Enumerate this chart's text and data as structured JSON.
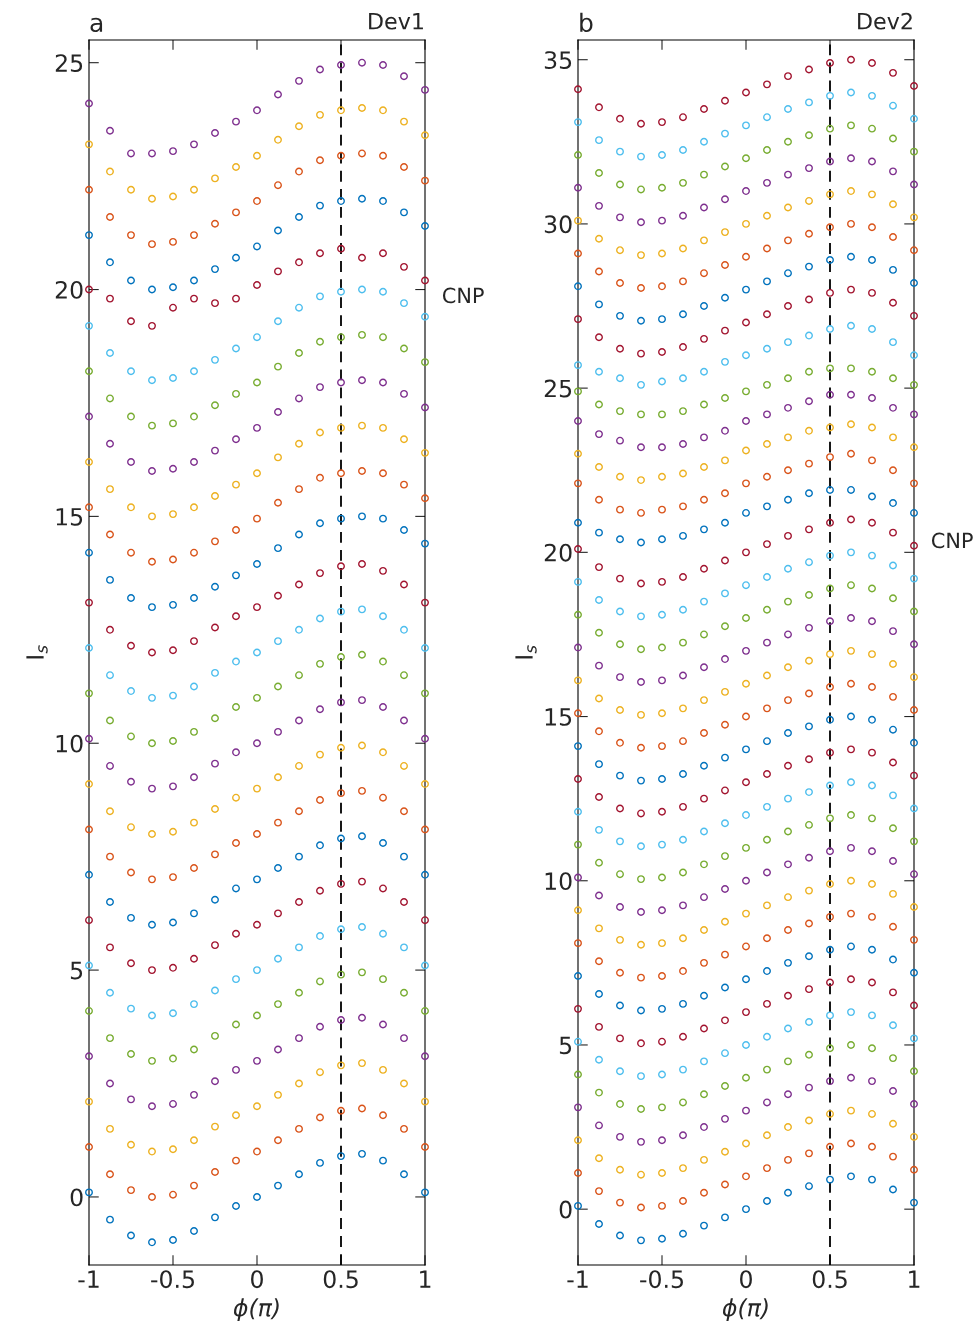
{
  "chart_data": [
    {
      "type": "scatter",
      "title": "a",
      "xlabel": "ϕ(π)",
      "ylabel": "I$_{s}$",
      "marker": "circle",
      "grid": false,
      "xlim": [
        -1,
        1
      ],
      "xticks": [
        -1,
        -0.5,
        0,
        0.5,
        1
      ],
      "ylim": [
        -1.5,
        25.5
      ],
      "yticks": [
        0,
        5,
        10,
        15,
        20,
        25
      ],
      "ref_lines": [
        {
          "axis": "x",
          "value": 0.5,
          "color": "#000000",
          "line_style": "dashed"
        }
      ],
      "annotations": [
        "Dev1",
        "CNP"
      ],
      "x": [
        -1,
        -0.875,
        -0.75,
        -0.625,
        -0.5,
        -0.375,
        -0.25,
        -0.125,
        0,
        0.125,
        0.25,
        0.375,
        0.5,
        0.625,
        0.75,
        0.875,
        1
      ],
      "series": [
        {
          "color": "#0072bd",
          "values": [
            0.1,
            -0.5,
            -0.85,
            -1,
            -0.95,
            -0.75,
            -0.45,
            -0.2,
            0,
            0.25,
            0.5,
            0.75,
            0.9,
            0.95,
            0.8,
            0.5,
            0.1
          ]
        },
        {
          "color": "#d95319",
          "values": [
            1.1,
            0.5,
            0.15,
            0,
            0.05,
            0.25,
            0.55,
            0.8,
            1,
            1.25,
            1.5,
            1.75,
            1.9,
            1.95,
            1.8,
            1.5,
            1.1
          ]
        },
        {
          "color": "#edb120",
          "values": [
            2.1,
            1.5,
            1.15,
            1,
            1.05,
            1.25,
            1.55,
            1.8,
            2,
            2.25,
            2.5,
            2.75,
            2.9,
            2.95,
            2.8,
            2.5,
            2.1
          ]
        },
        {
          "color": "#7e2f8e",
          "values": [
            3.1,
            2.5,
            2.15,
            2,
            2.05,
            2.25,
            2.55,
            2.8,
            3,
            3.25,
            3.5,
            3.75,
            3.9,
            3.95,
            3.8,
            3.5,
            3.1
          ]
        },
        {
          "color": "#77ac30",
          "values": [
            4.1,
            3.5,
            3.15,
            3,
            3.05,
            3.25,
            3.55,
            3.8,
            4,
            4.25,
            4.5,
            4.75,
            4.9,
            4.95,
            4.8,
            4.5,
            4.1
          ]
        },
        {
          "color": "#4dbeee",
          "values": [
            5.1,
            4.5,
            4.15,
            4,
            4.05,
            4.25,
            4.55,
            4.8,
            5,
            5.25,
            5.5,
            5.75,
            5.9,
            5.95,
            5.8,
            5.5,
            5.1
          ]
        },
        {
          "color": "#a2142f",
          "values": [
            6.1,
            5.5,
            5.15,
            5,
            5.05,
            5.25,
            5.55,
            5.8,
            6,
            6.25,
            6.5,
            6.75,
            6.9,
            6.95,
            6.8,
            6.5,
            6.1
          ]
        },
        {
          "color": "#0072bd",
          "values": [
            7.1,
            6.5,
            6.15,
            6,
            6.05,
            6.25,
            6.55,
            6.8,
            7,
            7.25,
            7.5,
            7.75,
            7.9,
            7.95,
            7.8,
            7.5,
            7.1
          ]
        },
        {
          "color": "#d95319",
          "values": [
            8.1,
            7.5,
            7.15,
            7,
            7.05,
            7.25,
            7.55,
            7.8,
            8,
            8.25,
            8.5,
            8.75,
            8.9,
            8.95,
            8.8,
            8.5,
            8.1
          ]
        },
        {
          "color": "#edb120",
          "values": [
            9.1,
            8.5,
            8.15,
            8,
            8.05,
            8.25,
            8.55,
            8.8,
            9,
            9.25,
            9.5,
            9.75,
            9.9,
            9.95,
            9.8,
            9.5,
            9.1
          ]
        },
        {
          "color": "#7e2f8e",
          "values": [
            10.1,
            9.5,
            9.15,
            9,
            9.05,
            9.25,
            9.55,
            9.8,
            10,
            10.25,
            10.5,
            10.75,
            10.9,
            10.95,
            10.8,
            10.5,
            10.1
          ]
        },
        {
          "color": "#77ac30",
          "values": [
            11.1,
            10.5,
            10.15,
            10,
            10.05,
            10.25,
            10.55,
            10.8,
            11,
            11.25,
            11.5,
            11.75,
            11.9,
            11.95,
            11.8,
            11.5,
            11.1
          ]
        },
        {
          "color": "#4dbeee",
          "values": [
            12.1,
            11.5,
            11.15,
            11,
            11.05,
            11.25,
            11.55,
            11.8,
            12,
            12.25,
            12.5,
            12.75,
            12.9,
            12.95,
            12.8,
            12.5,
            12.1
          ]
        },
        {
          "color": "#a2142f",
          "values": [
            13.1,
            12.5,
            12.15,
            12,
            12.05,
            12.25,
            12.55,
            12.8,
            13,
            13.25,
            13.5,
            13.75,
            13.9,
            13.95,
            13.8,
            13.5,
            13.1
          ]
        },
        {
          "color": "#0072bd",
          "values": [
            14.2,
            13.6,
            13.2,
            13,
            13.05,
            13.2,
            13.45,
            13.7,
            13.95,
            14.3,
            14.6,
            14.85,
            14.95,
            15,
            14.95,
            14.7,
            14.4
          ]
        },
        {
          "color": "#d95319",
          "values": [
            15.2,
            14.6,
            14.2,
            14,
            14.05,
            14.2,
            14.45,
            14.7,
            14.95,
            15.3,
            15.6,
            15.85,
            15.95,
            16,
            15.95,
            15.7,
            15.4
          ]
        },
        {
          "color": "#edb120",
          "values": [
            16.2,
            15.6,
            15.2,
            15,
            15.05,
            15.2,
            15.45,
            15.7,
            15.95,
            16.3,
            16.6,
            16.85,
            16.95,
            17,
            16.95,
            16.7,
            16.4
          ]
        },
        {
          "color": "#7e2f8e",
          "values": [
            17.2,
            16.6,
            16.2,
            16,
            16.05,
            16.2,
            16.45,
            16.7,
            16.95,
            17.3,
            17.6,
            17.85,
            17.95,
            18,
            17.95,
            17.7,
            17.4
          ]
        },
        {
          "color": "#77ac30",
          "values": [
            18.2,
            17.6,
            17.2,
            17,
            17.05,
            17.2,
            17.45,
            17.7,
            17.95,
            18.3,
            18.6,
            18.85,
            18.95,
            19,
            18.95,
            18.7,
            18.4
          ]
        },
        {
          "color": "#4dbeee",
          "values": [
            19.2,
            18.6,
            18.2,
            18,
            18.05,
            18.2,
            18.45,
            18.7,
            18.95,
            19.3,
            19.6,
            19.85,
            19.95,
            20,
            19.95,
            19.7,
            19.4
          ]
        },
        {
          "color": "#a2142f",
          "values": [
            20.0,
            19.8,
            19.3,
            19.2,
            19.6,
            19.8,
            19.7,
            19.8,
            20.1,
            20.4,
            20.6,
            20.8,
            20.9,
            20.7,
            20.8,
            20.5,
            20.2
          ]
        },
        {
          "color": "#0072bd",
          "values": [
            21.2,
            20.6,
            20.2,
            20,
            20.05,
            20.2,
            20.45,
            20.7,
            20.95,
            21.3,
            21.6,
            21.85,
            21.95,
            22,
            21.95,
            21.7,
            21.4
          ]
        },
        {
          "color": "#d95319",
          "values": [
            22.2,
            21.6,
            21.2,
            21,
            21.05,
            21.2,
            21.45,
            21.7,
            21.95,
            22.3,
            22.6,
            22.85,
            22.95,
            23,
            22.95,
            22.7,
            22.4
          ]
        },
        {
          "color": "#edb120",
          "values": [
            23.2,
            22.6,
            22.2,
            22,
            22.05,
            22.2,
            22.45,
            22.7,
            22.95,
            23.3,
            23.6,
            23.85,
            23.95,
            24,
            23.95,
            23.7,
            23.4
          ]
        },
        {
          "color": "#7e2f8e",
          "values": [
            24.1,
            23.5,
            23,
            23,
            23.05,
            23.2,
            23.45,
            23.7,
            23.95,
            24.3,
            24.6,
            24.85,
            24.95,
            25,
            24.95,
            24.7,
            24.4
          ]
        }
      ]
    },
    {
      "type": "scatter",
      "title": "b",
      "xlabel": "ϕ(π)",
      "ylabel": "I$_{s}$",
      "marker": "circle",
      "grid": false,
      "xlim": [
        -1,
        1
      ],
      "xticks": [
        -1,
        -0.5,
        0,
        0.5,
        1
      ],
      "ylim": [
        -1.7,
        35.6
      ],
      "yticks": [
        0,
        5,
        10,
        15,
        20,
        25,
        30,
        35
      ],
      "ref_lines": [
        {
          "axis": "x",
          "value": 0.5,
          "color": "#000000",
          "line_style": "dashed"
        }
      ],
      "annotations": [
        "Dev2",
        "CNP"
      ],
      "x": [
        -1,
        -0.875,
        -0.75,
        -0.625,
        -0.5,
        -0.375,
        -0.25,
        -0.125,
        0,
        0.125,
        0.25,
        0.375,
        0.5,
        0.625,
        0.75,
        0.875,
        1
      ],
      "series": [
        {
          "color": "#0072bd",
          "values": [
            0.1,
            -0.45,
            -0.8,
            -0.95,
            -0.9,
            -0.75,
            -0.5,
            -0.25,
            0,
            0.25,
            0.5,
            0.7,
            0.9,
            1,
            0.9,
            0.6,
            0.2
          ]
        },
        {
          "color": "#d95319",
          "values": [
            1.1,
            0.55,
            0.2,
            0.05,
            0.1,
            0.25,
            0.5,
            0.75,
            1,
            1.25,
            1.5,
            1.7,
            1.9,
            2,
            1.9,
            1.6,
            1.2
          ]
        },
        {
          "color": "#edb120",
          "values": [
            2.1,
            1.55,
            1.2,
            1.05,
            1.1,
            1.25,
            1.5,
            1.75,
            2,
            2.25,
            2.5,
            2.7,
            2.9,
            3,
            2.9,
            2.6,
            2.2
          ]
        },
        {
          "color": "#7e2f8e",
          "values": [
            3.1,
            2.55,
            2.2,
            2.05,
            2.1,
            2.25,
            2.5,
            2.75,
            3,
            3.25,
            3.5,
            3.7,
            3.9,
            4,
            3.9,
            3.6,
            3.2
          ]
        },
        {
          "color": "#77ac30",
          "values": [
            4.1,
            3.55,
            3.2,
            3.05,
            3.1,
            3.25,
            3.5,
            3.75,
            4,
            4.25,
            4.5,
            4.7,
            4.9,
            5,
            4.9,
            4.6,
            4.2
          ]
        },
        {
          "color": "#4dbeee",
          "values": [
            5.1,
            4.55,
            4.2,
            4.05,
            4.1,
            4.25,
            4.5,
            4.75,
            5,
            5.25,
            5.5,
            5.7,
            5.9,
            6,
            5.9,
            5.6,
            5.2
          ]
        },
        {
          "color": "#a2142f",
          "values": [
            6.1,
            5.55,
            5.2,
            5.05,
            5.1,
            5.25,
            5.5,
            5.75,
            6,
            6.25,
            6.5,
            6.7,
            6.9,
            7,
            6.9,
            6.6,
            6.2
          ]
        },
        {
          "color": "#0072bd",
          "values": [
            7.1,
            6.55,
            6.2,
            6.05,
            6.1,
            6.25,
            6.5,
            6.75,
            7,
            7.25,
            7.5,
            7.7,
            7.9,
            8,
            7.9,
            7.6,
            7.2
          ]
        },
        {
          "color": "#d95319",
          "values": [
            8.1,
            7.55,
            7.2,
            7.05,
            7.1,
            7.25,
            7.5,
            7.75,
            8,
            8.25,
            8.5,
            8.7,
            8.9,
            9,
            8.9,
            8.6,
            8.2
          ]
        },
        {
          "color": "#edb120",
          "values": [
            9.1,
            8.55,
            8.2,
            8.05,
            8.1,
            8.25,
            8.5,
            8.75,
            9,
            9.25,
            9.5,
            9.7,
            9.9,
            10,
            9.9,
            9.6,
            9.2
          ]
        },
        {
          "color": "#7e2f8e",
          "values": [
            10.1,
            9.55,
            9.2,
            9.05,
            9.1,
            9.25,
            9.5,
            9.75,
            10,
            10.25,
            10.5,
            10.7,
            10.9,
            11,
            10.9,
            10.6,
            10.2
          ]
        },
        {
          "color": "#77ac30",
          "values": [
            11.1,
            10.55,
            10.2,
            10.05,
            10.1,
            10.25,
            10.5,
            10.75,
            11,
            11.25,
            11.5,
            11.7,
            11.9,
            12,
            11.9,
            11.6,
            11.2
          ]
        },
        {
          "color": "#4dbeee",
          "values": [
            12.1,
            11.55,
            11.2,
            11.05,
            11.1,
            11.25,
            11.5,
            11.75,
            12,
            12.25,
            12.5,
            12.7,
            12.9,
            13,
            12.9,
            12.6,
            12.2
          ]
        },
        {
          "color": "#a2142f",
          "values": [
            13.1,
            12.55,
            12.2,
            12.05,
            12.1,
            12.25,
            12.5,
            12.75,
            13,
            13.25,
            13.5,
            13.7,
            13.9,
            14,
            13.9,
            13.6,
            13.2
          ]
        },
        {
          "color": "#0072bd",
          "values": [
            14.1,
            13.55,
            13.2,
            13.05,
            13.1,
            13.25,
            13.5,
            13.75,
            14,
            14.25,
            14.5,
            14.7,
            14.9,
            15,
            14.9,
            14.6,
            14.2
          ]
        },
        {
          "color": "#d95319",
          "values": [
            15.1,
            14.55,
            14.2,
            14.05,
            14.1,
            14.25,
            14.5,
            14.75,
            15,
            15.25,
            15.5,
            15.7,
            15.9,
            16,
            15.9,
            15.6,
            15.2
          ]
        },
        {
          "color": "#edb120",
          "values": [
            16.1,
            15.55,
            15.2,
            15.05,
            15.1,
            15.25,
            15.5,
            15.75,
            16,
            16.25,
            16.5,
            16.7,
            16.9,
            17,
            16.9,
            16.6,
            16.2
          ]
        },
        {
          "color": "#7e2f8e",
          "values": [
            17.1,
            16.55,
            16.2,
            16.05,
            16.1,
            16.25,
            16.5,
            16.75,
            17,
            17.25,
            17.5,
            17.7,
            17.9,
            18,
            17.9,
            17.6,
            17.2
          ]
        },
        {
          "color": "#77ac30",
          "values": [
            18.1,
            17.55,
            17.2,
            17.05,
            17.1,
            17.25,
            17.5,
            17.75,
            18,
            18.25,
            18.5,
            18.7,
            18.9,
            19,
            18.9,
            18.6,
            18.2
          ]
        },
        {
          "color": "#4dbeee",
          "values": [
            19.1,
            18.55,
            18.2,
            18.05,
            18.1,
            18.25,
            18.5,
            18.75,
            19,
            19.25,
            19.5,
            19.7,
            19.9,
            20,
            19.9,
            19.6,
            19.2
          ]
        },
        {
          "color": "#a2142f",
          "values": [
            20.1,
            19.55,
            19.2,
            19.05,
            19.1,
            19.25,
            19.5,
            19.75,
            20,
            20.25,
            20.5,
            20.7,
            20.9,
            21,
            20.9,
            20.6,
            20.2
          ]
        },
        {
          "color": "#0072bd",
          "values": [
            20.9,
            20.6,
            20.4,
            20.3,
            20.4,
            20.5,
            20.7,
            20.9,
            21.2,
            21.4,
            21.6,
            21.8,
            21.9,
            21.9,
            21.7,
            21.5,
            21.2
          ]
        },
        {
          "color": "#d95319",
          "values": [
            22.1,
            21.6,
            21.3,
            21.2,
            21.3,
            21.4,
            21.6,
            21.8,
            22.1,
            22.3,
            22.5,
            22.7,
            22.9,
            23,
            22.8,
            22.5,
            22.1
          ]
        },
        {
          "color": "#edb120",
          "values": [
            23,
            22.6,
            22.3,
            22.2,
            22.3,
            22.4,
            22.6,
            22.8,
            23.1,
            23.3,
            23.5,
            23.7,
            23.8,
            23.9,
            23.8,
            23.5,
            23.2
          ]
        },
        {
          "color": "#7e2f8e",
          "values": [
            24,
            23.6,
            23.4,
            23.2,
            23.2,
            23.3,
            23.5,
            23.7,
            24,
            24.2,
            24.4,
            24.6,
            24.8,
            24.8,
            24.7,
            24.4,
            24.2
          ]
        },
        {
          "color": "#77ac30",
          "values": [
            24.9,
            24.5,
            24.3,
            24.2,
            24.2,
            24.3,
            24.5,
            24.7,
            24.9,
            25.1,
            25.3,
            25.5,
            25.6,
            25.6,
            25.5,
            25.3,
            25.1
          ]
        },
        {
          "color": "#4dbeee",
          "values": [
            25.7,
            25.5,
            25.3,
            25.1,
            25.2,
            25.3,
            25.5,
            25.8,
            26,
            26.2,
            26.4,
            26.6,
            26.8,
            26.9,
            26.8,
            26.4,
            26
          ]
        },
        {
          "color": "#a2142f",
          "values": [
            27.1,
            26.55,
            26.2,
            26.05,
            26.1,
            26.25,
            26.5,
            26.75,
            27,
            27.25,
            27.5,
            27.7,
            27.9,
            28,
            27.9,
            27.6,
            27.2
          ]
        },
        {
          "color": "#0072bd",
          "values": [
            28.1,
            27.55,
            27.2,
            27.05,
            27.1,
            27.25,
            27.5,
            27.75,
            28,
            28.25,
            28.5,
            28.7,
            28.9,
            29,
            28.9,
            28.6,
            28.2
          ]
        },
        {
          "color": "#d95319",
          "values": [
            29.1,
            28.55,
            28.2,
            28.05,
            28.1,
            28.25,
            28.5,
            28.75,
            29,
            29.25,
            29.5,
            29.7,
            29.9,
            30,
            29.9,
            29.6,
            29.2
          ]
        },
        {
          "color": "#edb120",
          "values": [
            30.1,
            29.55,
            29.2,
            29.05,
            29.1,
            29.25,
            29.5,
            29.75,
            30,
            30.25,
            30.5,
            30.7,
            30.9,
            31,
            30.9,
            30.6,
            30.2
          ]
        },
        {
          "color": "#7e2f8e",
          "values": [
            31.1,
            30.55,
            30.2,
            30.05,
            30.1,
            30.25,
            30.5,
            30.75,
            31,
            31.25,
            31.5,
            31.7,
            31.9,
            32,
            31.9,
            31.6,
            31.2
          ]
        },
        {
          "color": "#77ac30",
          "values": [
            32.1,
            31.55,
            31.2,
            31.05,
            31.1,
            31.25,
            31.5,
            31.75,
            32,
            32.25,
            32.5,
            32.7,
            32.9,
            33,
            32.9,
            32.6,
            32.2
          ]
        },
        {
          "color": "#4dbeee",
          "values": [
            33.1,
            32.55,
            32.2,
            32.05,
            32.1,
            32.25,
            32.5,
            32.75,
            33,
            33.25,
            33.5,
            33.7,
            33.9,
            34,
            33.9,
            33.6,
            33.2
          ]
        },
        {
          "color": "#a2142f",
          "values": [
            34.1,
            33.55,
            33.2,
            33.05,
            33.1,
            33.25,
            33.5,
            33.75,
            34,
            34.25,
            34.5,
            34.7,
            34.9,
            35,
            34.9,
            34.6,
            34.2
          ]
        }
      ]
    }
  ]
}
